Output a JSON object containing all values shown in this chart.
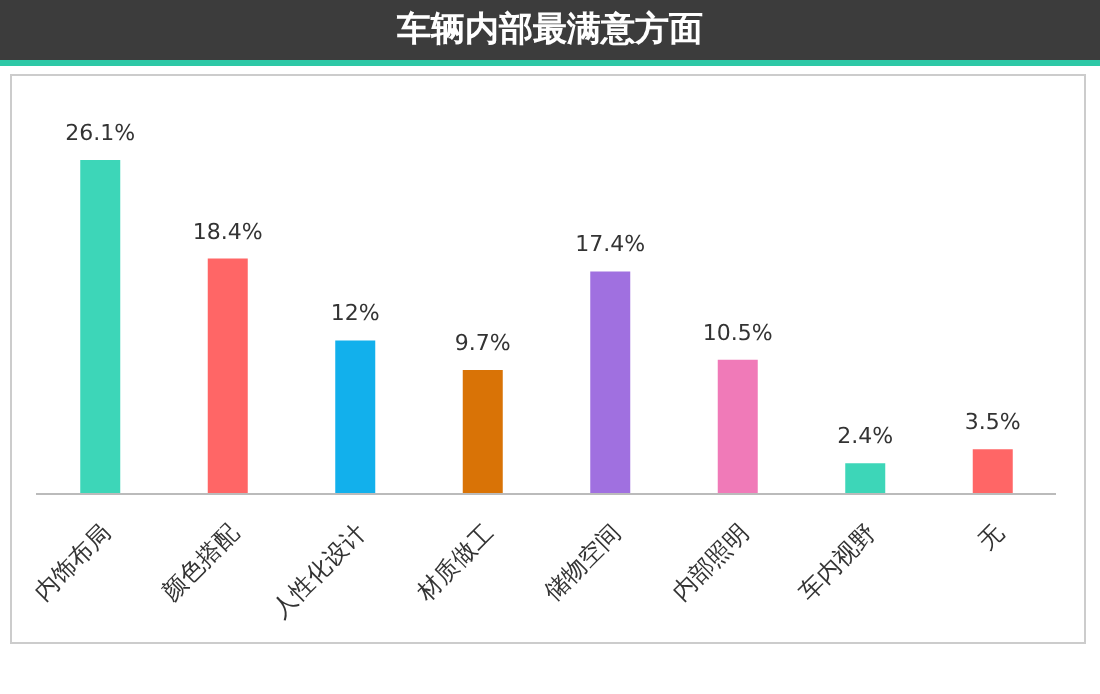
{
  "chart_data": {
    "type": "bar",
    "title": "车辆内部最满意方面",
    "categories": [
      "内饰布局",
      "颜色搭配",
      "人性化设计",
      "材质做工",
      "储物空间",
      "内部照明",
      "车内视野",
      "无"
    ],
    "values": [
      26.1,
      18.4,
      12,
      9.7,
      17.4,
      10.5,
      2.4,
      3.5
    ],
    "value_labels": [
      "26.1%",
      "18.4%",
      "12%",
      "9.7%",
      "17.4%",
      "10.5%",
      "2.4%",
      "3.5%"
    ],
    "colors": [
      "#3dd6b8",
      "#ff6666",
      "#12b0ec",
      "#d97306",
      "#a070e0",
      "#f07ab8",
      "#3dd6b8",
      "#ff6666"
    ],
    "grid": false,
    "legend": false
  }
}
